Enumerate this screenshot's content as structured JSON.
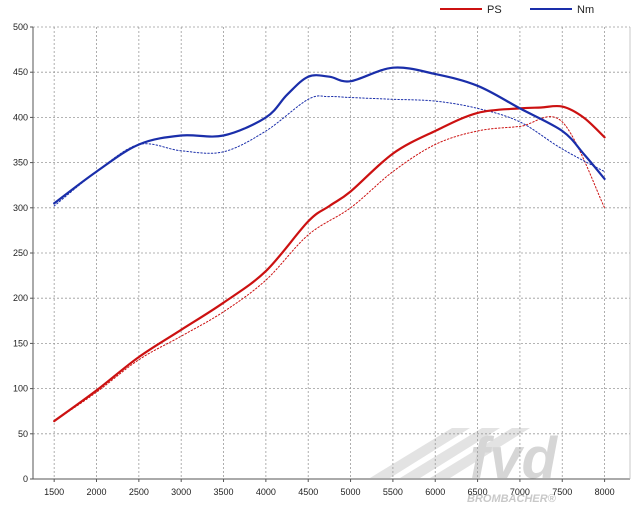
{
  "chart_data": {
    "type": "line",
    "title": "",
    "xlabel": "",
    "ylabel": "",
    "xlim": [
      1250,
      8300
    ],
    "ylim": [
      0,
      500
    ],
    "x_ticks": [
      1500,
      2000,
      2500,
      3000,
      3500,
      4000,
      4500,
      5000,
      5500,
      6000,
      6500,
      7000,
      7500,
      8000
    ],
    "y_ticks": [
      0,
      50,
      100,
      150,
      200,
      250,
      300,
      350,
      400,
      450,
      500
    ],
    "grid": true,
    "legend_position": "top-right",
    "series": [
      {
        "name": "PS",
        "color": "#cc1111",
        "style": "solid",
        "x": [
          1500,
          2000,
          2500,
          3000,
          3500,
          4000,
          4500,
          4750,
          5000,
          5500,
          6000,
          6500,
          7000,
          7250,
          7500,
          7750,
          8000
        ],
        "y": [
          64,
          98,
          135,
          165,
          195,
          230,
          285,
          302,
          318,
          360,
          385,
          405,
          410,
          411,
          412,
          400,
          378
        ]
      },
      {
        "name": "Nm",
        "color": "#1a2eaa",
        "style": "solid",
        "x": [
          1500,
          2000,
          2500,
          3000,
          3500,
          4000,
          4250,
          4500,
          4750,
          5000,
          5500,
          6000,
          6500,
          7000,
          7500,
          7750,
          8000
        ],
        "y": [
          305,
          340,
          370,
          380,
          380,
          400,
          425,
          445,
          445,
          440,
          455,
          448,
          435,
          410,
          385,
          360,
          332
        ]
      },
      {
        "color": "#cc1111",
        "style": "dotted",
        "x": [
          1500,
          2000,
          2500,
          3000,
          3500,
          4000,
          4500,
          5000,
          5500,
          6000,
          6500,
          7000,
          7500,
          8000
        ],
        "y": [
          64,
          96,
          132,
          158,
          185,
          220,
          270,
          300,
          340,
          370,
          385,
          390,
          395,
          300
        ]
      },
      {
        "color": "#1a2eaa",
        "style": "dotted",
        "x": [
          1500,
          2000,
          2500,
          3000,
          3500,
          4000,
          4500,
          4750,
          5000,
          5500,
          6000,
          6500,
          7000,
          7500,
          8000
        ],
        "y": [
          302,
          340,
          370,
          363,
          362,
          385,
          420,
          423,
          422,
          420,
          418,
          410,
          395,
          365,
          340
        ]
      }
    ]
  },
  "watermark": {
    "logo": "fvd",
    "text": "BROMBACHER®"
  },
  "colors": {
    "grid": "#9a9a9a",
    "axis": "#555555",
    "watermark": "#d4d4d4"
  }
}
